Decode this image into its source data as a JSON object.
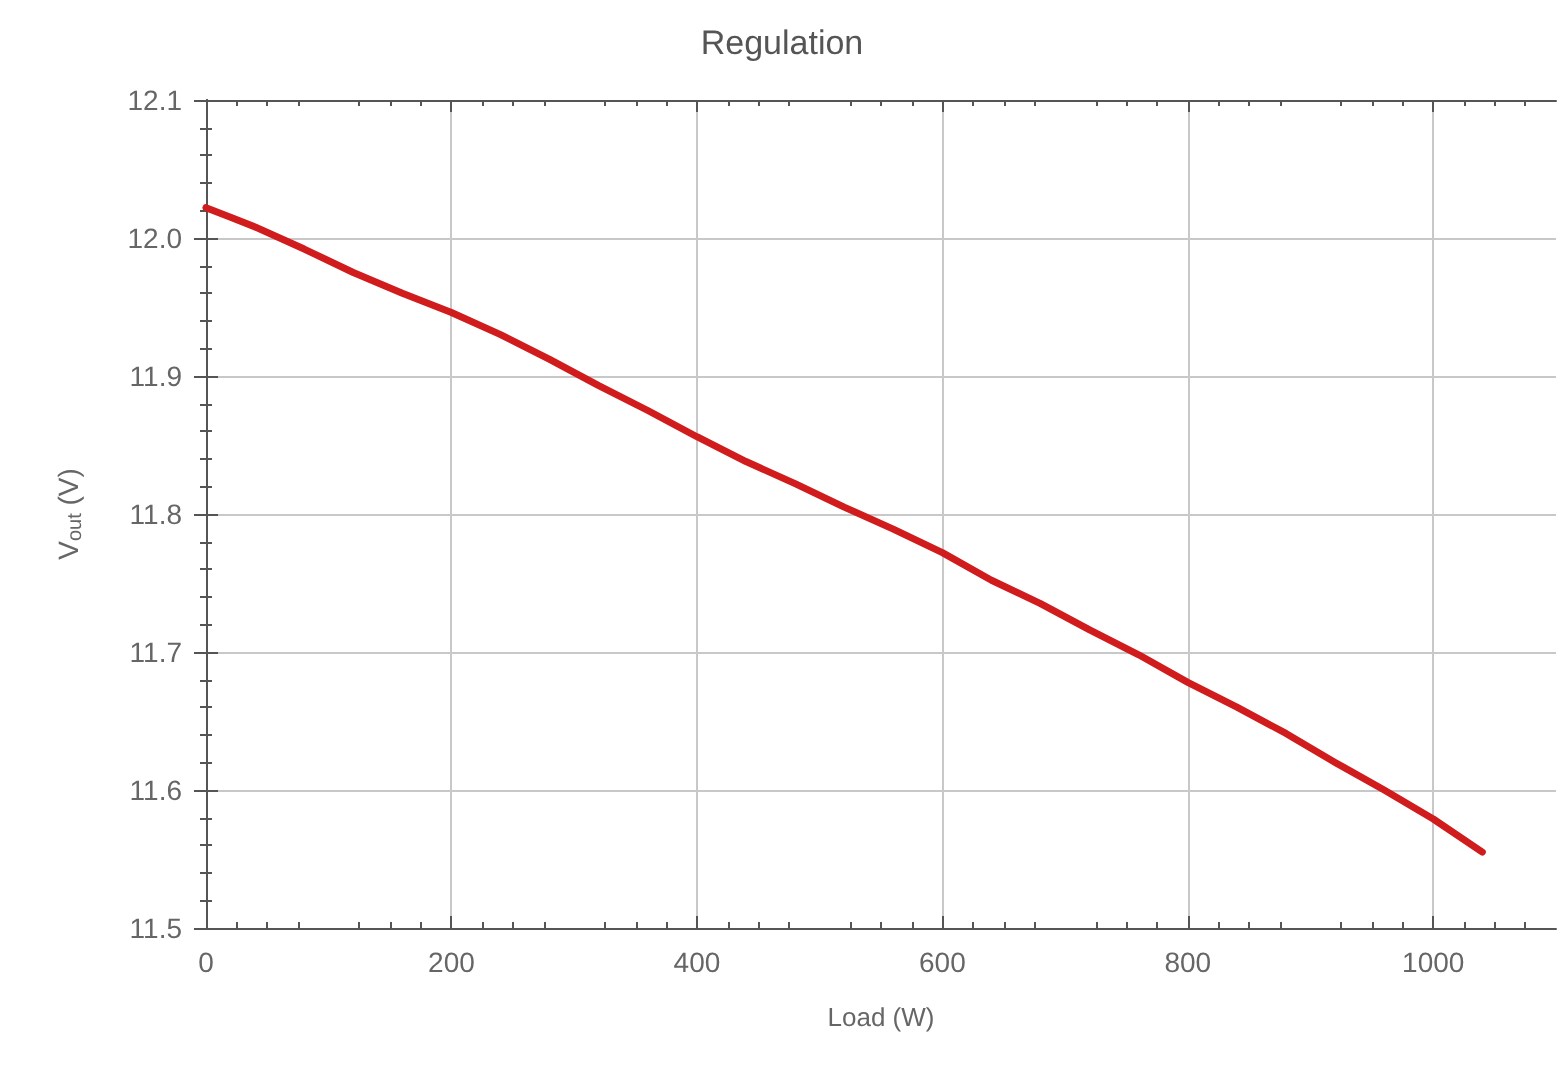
{
  "chart_data": {
    "type": "line",
    "title": "Regulation",
    "xlabel": "Load (W)",
    "ylabel": "V$_{out}$ (V)",
    "x": [
      0,
      20,
      40,
      80,
      120,
      160,
      200,
      240,
      280,
      320,
      360,
      400,
      440,
      480,
      520,
      560,
      600,
      640,
      680,
      720,
      760,
      800,
      840,
      880,
      920,
      960,
      1000,
      1040
    ],
    "series": [
      {
        "color": "#d01c1c",
        "values": [
          12.022,
          12.015,
          12.008,
          11.992,
          11.975,
          11.96,
          11.946,
          11.93,
          11.912,
          11.893,
          11.875,
          11.856,
          11.838,
          11.822,
          11.805,
          11.789,
          11.772,
          11.752,
          11.735,
          11.716,
          11.698,
          11.678,
          11.66,
          11.641,
          11.62,
          11.6,
          11.579,
          11.555
        ]
      }
    ],
    "xlim": [
      0,
      1100
    ],
    "xticks": [
      0,
      200,
      400,
      600,
      800,
      1000
    ],
    "ylim": [
      11.5,
      12.1
    ],
    "yticks": [
      11.5,
      11.6,
      11.7,
      11.8,
      11.9,
      {
        "value": 12,
        "label": "12.0"
      },
      12.1
    ],
    "grid": true,
    "marker": "none",
    "line_style": "solid"
  }
}
